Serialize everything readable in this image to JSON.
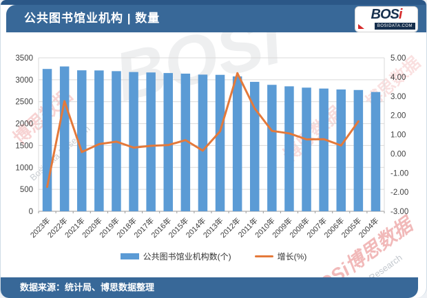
{
  "header": {
    "title": "公共图书馆业机构 | 数量",
    "logo": {
      "main": "BOS",
      "accent": "i",
      "domain": "BOSIDATA.COM"
    }
  },
  "footer": {
    "text": "数据来源：统计局、博思数据整理"
  },
  "legend": [
    {
      "label": "公共图书馆业机构数(个)",
      "color": "#5B9BD5"
    },
    {
      "label": "增长(%)",
      "color": "#E4793A"
    }
  ],
  "chart_data": {
    "type": "bar",
    "title": "公共图书馆业机构 | 数量",
    "categories": [
      "2023年",
      "2022年",
      "2021年",
      "2020年",
      "2019年",
      "2018年",
      "2017年",
      "2016年",
      "2015年",
      "2014年",
      "2013年",
      "2012年",
      "2011年",
      "2010年",
      "2009年",
      "2008年",
      "2007年",
      "2006年",
      "2005年",
      "2004年"
    ],
    "series": [
      {
        "name": "公共图书馆业机构数(个)",
        "type": "bar",
        "axis": "left",
        "color": "#5B9BD5",
        "values": [
          3246,
          3303,
          3215,
          3212,
          3196,
          3176,
          3166,
          3153,
          3139,
          3117,
          3112,
          3076,
          2952,
          2884,
          2850,
          2820,
          2799,
          2778,
          2766,
          2720
        ]
      },
      {
        "name": "增长(%)",
        "type": "line",
        "axis": "right",
        "color": "#E4793A",
        "values": [
          -1.73,
          2.74,
          0.09,
          0.5,
          0.63,
          0.32,
          0.41,
          0.45,
          0.71,
          0.16,
          1.17,
          4.2,
          2.36,
          1.19,
          1.06,
          0.75,
          0.76,
          0.43,
          1.69,
          null
        ]
      }
    ],
    "left_axis": {
      "min": 0,
      "max": 3500,
      "step": 500,
      "labels": [
        "3500",
        "3000",
        "2500",
        "2000",
        "1500",
        "1000",
        "500",
        "0"
      ]
    },
    "right_axis": {
      "min": -3,
      "max": 5,
      "step": 1,
      "labels": [
        "5.00",
        "4.00",
        "3.00",
        "2.00",
        "1.00",
        "0.00",
        "-1.00",
        "-2.00",
        "-3.00"
      ]
    },
    "grid": true,
    "legend_position": "bottom",
    "x_label_rotation": -45
  },
  "watermarks": [
    {
      "text": "BOSi"
    },
    {
      "text": "博思数据"
    },
    {
      "text": "BosiData Research"
    },
    {
      "text": "博思数据"
    },
    {
      "text": "BOSi博思数据"
    },
    {
      "text": "BosiData Research"
    },
    {
      "text": "博思数据"
    }
  ]
}
